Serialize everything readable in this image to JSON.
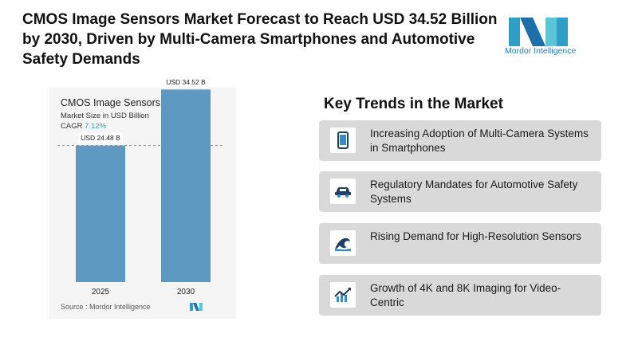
{
  "headline": "CMOS Image Sensors Market Forecast to Reach USD 34.52 Billion by 2030, Driven by Multi-Camera Smartphones and Automotive Safety Demands",
  "brand": {
    "name": "Mordor Intelligence",
    "icon": "mordor-logo-icon"
  },
  "chart_data": {
    "type": "bar",
    "title": "CMOS Image Sensors Market",
    "subtitle": "Market Size in USD Billion",
    "cagr_label": "CAGR",
    "cagr_value": "7.12%",
    "categories": [
      "2025",
      "2030"
    ],
    "values": [
      24.48,
      34.52
    ],
    "data_labels": [
      "USD 24.48 B",
      "USD 34.52 B"
    ],
    "ylim": [
      0,
      40
    ],
    "grid": false,
    "reference_line": "dashed line at 2025 value",
    "bar_color": "#5e99c1",
    "source": "Source : Mordor Intelligence"
  },
  "trends": {
    "title": "Key Trends in the Market",
    "items": [
      {
        "label": "Increasing Adoption of Multi-Camera Systems in Smartphones",
        "icon": "smartphone-icon"
      },
      {
        "label": "Regulatory Mandates for Automotive Safety Systems",
        "icon": "car-icon"
      },
      {
        "label": "Rising Demand for High-Resolution Sensors",
        "icon": "wave-icon"
      },
      {
        "label": "Growth of 4K and 8K Imaging for Video-Centric",
        "icon": "growth-chart-icon"
      }
    ]
  }
}
